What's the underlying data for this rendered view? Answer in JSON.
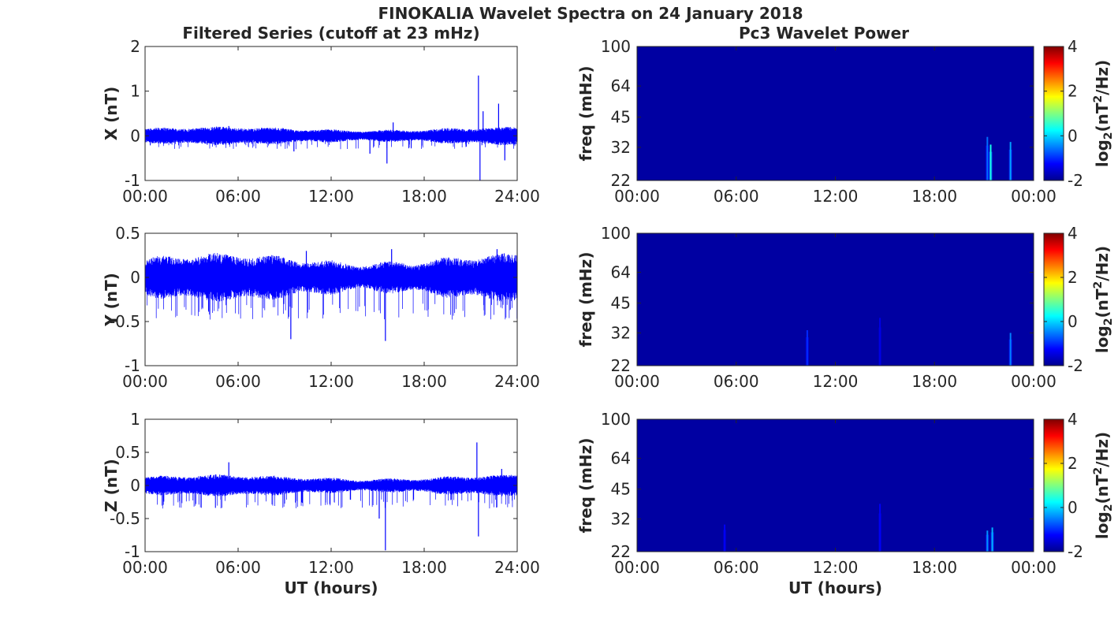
{
  "figure_title": "FINOKALIA Wavelet Spectra on 24 January 2018",
  "left_column_title": "Filtered Series (cutoff at 23 mHz)",
  "right_column_title": "Pc3 Wavelet Power",
  "colors": {
    "trace": "#0000ff",
    "axis": "#262626",
    "background": "#ffffff",
    "spectrum_floor": "#00008f"
  },
  "chart_data": [
    {
      "type": "line",
      "component": "X",
      "ylabel": "X (nT)",
      "xlabel": "",
      "xlim": [
        0,
        24
      ],
      "ylim": [
        -1,
        2
      ],
      "x_ticks": [
        0,
        6,
        12,
        18,
        24
      ],
      "x_tick_labels": [
        "00:00",
        "06:00",
        "12:00",
        "18:00",
        "24:00"
      ],
      "y_ticks": [
        -1,
        0,
        1,
        2
      ],
      "y_tick_labels": [
        "-1",
        "0",
        "1",
        "2"
      ],
      "grid": false,
      "envelope": {
        "upper": 0.15,
        "lower": -0.15,
        "deep_lower": -0.3
      },
      "spikes": [
        {
          "x": 5.4,
          "y": 0.22
        },
        {
          "x": 9.6,
          "y": -0.35
        },
        {
          "x": 14.5,
          "y": -0.4
        },
        {
          "x": 15.6,
          "y": -0.62
        },
        {
          "x": 16.0,
          "y": 0.3
        },
        {
          "x": 21.5,
          "y": 1.35
        },
        {
          "x": 21.6,
          "y": -1.0
        },
        {
          "x": 21.8,
          "y": 0.55
        },
        {
          "x": 22.8,
          "y": 0.72
        },
        {
          "x": 23.2,
          "y": -0.55
        }
      ]
    },
    {
      "type": "line",
      "component": "Y",
      "ylabel": "Y (nT)",
      "xlabel": "",
      "xlim": [
        0,
        24
      ],
      "ylim": [
        -1,
        0.5
      ],
      "x_ticks": [
        0,
        6,
        12,
        18,
        24
      ],
      "x_tick_labels": [
        "00:00",
        "06:00",
        "12:00",
        "18:00",
        "24:00"
      ],
      "y_ticks": [
        -1,
        -0.5,
        0,
        0.5
      ],
      "y_tick_labels": [
        "-1",
        "-0.5",
        "0",
        "0.5"
      ],
      "grid": false,
      "envelope": {
        "upper": 0.2,
        "lower": -0.2,
        "deep_lower": -0.48
      },
      "spikes": [
        {
          "x": 5.3,
          "y": 0.25
        },
        {
          "x": 9.4,
          "y": -0.7
        },
        {
          "x": 10.4,
          "y": 0.3
        },
        {
          "x": 15.5,
          "y": -0.72
        },
        {
          "x": 15.9,
          "y": 0.32
        },
        {
          "x": 22.7,
          "y": 0.32
        }
      ]
    },
    {
      "type": "line",
      "component": "Z",
      "ylabel": "Z (nT)",
      "xlabel": "UT (hours)",
      "xlim": [
        0,
        24
      ],
      "ylim": [
        -1,
        1
      ],
      "x_ticks": [
        0,
        6,
        12,
        18,
        24
      ],
      "x_tick_labels": [
        "00:00",
        "06:00",
        "12:00",
        "18:00",
        "24:00"
      ],
      "y_ticks": [
        -1,
        -0.5,
        0,
        0.5,
        1
      ],
      "y_tick_labels": [
        "-1",
        "-0.5",
        "0",
        "0.5",
        "1"
      ],
      "grid": false,
      "envelope": {
        "upper": 0.12,
        "lower": -0.12,
        "deep_lower": -0.35
      },
      "spikes": [
        {
          "x": 5.4,
          "y": 0.35
        },
        {
          "x": 15.1,
          "y": -0.5
        },
        {
          "x": 15.5,
          "y": -0.98
        },
        {
          "x": 21.4,
          "y": 0.65
        },
        {
          "x": 21.5,
          "y": -0.77
        },
        {
          "x": 23.0,
          "y": 0.25
        }
      ]
    },
    {
      "type": "heatmap",
      "component": "X",
      "ylabel": "freq (mHz)",
      "xlabel": "",
      "xlim": [
        0,
        24
      ],
      "x_ticks": [
        0,
        6,
        12,
        18,
        24
      ],
      "x_tick_labels": [
        "00:00",
        "06:00",
        "12:00",
        "18:00",
        "00:00"
      ],
      "y_scale": "log",
      "ylim": [
        22,
        100
      ],
      "y_ticks": [
        22,
        32,
        45,
        64,
        100
      ],
      "y_tick_labels": [
        "22",
        "32",
        "45",
        "64",
        "100"
      ],
      "colorbar": {
        "label": "log2(nT²/Hz)",
        "clim": [
          -2,
          4
        ],
        "ticks": [
          -2,
          0,
          2,
          4
        ],
        "tick_labels": [
          "-2",
          "0",
          "2",
          "4"
        ]
      },
      "background_value": -1.8,
      "features": [
        {
          "t": 21.2,
          "f_top": 36,
          "value": -0.6
        },
        {
          "t": 21.4,
          "f_top": 33,
          "value": 0.4
        },
        {
          "t": 22.6,
          "f_top": 34,
          "value": -0.3
        }
      ]
    },
    {
      "type": "heatmap",
      "component": "Y",
      "ylabel": "freq (mHz)",
      "xlabel": "",
      "xlim": [
        0,
        24
      ],
      "x_ticks": [
        0,
        6,
        12,
        18,
        24
      ],
      "x_tick_labels": [
        "00:00",
        "06:00",
        "12:00",
        "18:00",
        "00:00"
      ],
      "y_scale": "log",
      "ylim": [
        22,
        100
      ],
      "y_ticks": [
        22,
        32,
        45,
        64,
        100
      ],
      "y_tick_labels": [
        "22",
        "32",
        "45",
        "64",
        "100"
      ],
      "colorbar": {
        "label": "log2(nT²/Hz)",
        "clim": [
          -2,
          4
        ],
        "ticks": [
          -2,
          0,
          2,
          4
        ],
        "tick_labels": [
          "-2",
          "0",
          "2",
          "4"
        ]
      },
      "background_value": -1.8,
      "features": [
        {
          "t": 10.3,
          "f_top": 33,
          "value": -1.0
        },
        {
          "t": 14.7,
          "f_top": 38,
          "value": -1.4
        },
        {
          "t": 22.6,
          "f_top": 32,
          "value": -0.5
        }
      ]
    },
    {
      "type": "heatmap",
      "component": "Z",
      "ylabel": "freq (mHz)",
      "xlabel": "UT (hours)",
      "xlim": [
        0,
        24
      ],
      "x_ticks": [
        0,
        6,
        12,
        18,
        24
      ],
      "x_tick_labels": [
        "00:00",
        "06:00",
        "12:00",
        "18:00",
        "00:00"
      ],
      "y_scale": "log",
      "ylim": [
        22,
        100
      ],
      "y_ticks": [
        22,
        32,
        45,
        64,
        100
      ],
      "y_tick_labels": [
        "22",
        "32",
        "45",
        "64",
        "100"
      ],
      "colorbar": {
        "label": "log2(nT²/Hz)",
        "clim": [
          -2,
          4
        ],
        "ticks": [
          -2,
          0,
          2,
          4
        ],
        "tick_labels": [
          "-2",
          "0",
          "2",
          "4"
        ]
      },
      "background_value": -1.8,
      "features": [
        {
          "t": 5.3,
          "f_top": 30,
          "value": -1.3
        },
        {
          "t": 14.7,
          "f_top": 38,
          "value": -1.3
        },
        {
          "t": 21.2,
          "f_top": 28,
          "value": -0.4
        },
        {
          "t": 21.5,
          "f_top": 29,
          "value": -0.2
        }
      ]
    }
  ]
}
